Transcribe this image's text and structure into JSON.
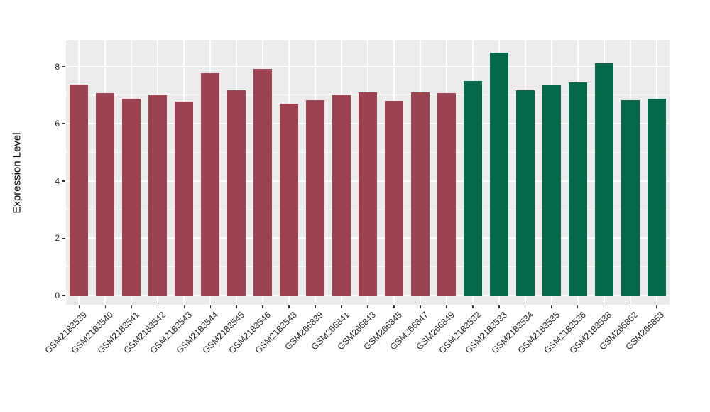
{
  "chart_data": {
    "type": "bar",
    "title": "",
    "xlabel": "",
    "ylabel": "Expression Level",
    "ylim": [
      0,
      8.9
    ],
    "y_ticks": [
      0,
      2,
      4,
      6,
      8
    ],
    "y_minor_ticks": [
      1,
      3,
      5,
      7
    ],
    "grid": true,
    "legend_position": "none",
    "panel_background": "#EBEBEB",
    "categories": [
      "GSM2183539",
      "GSM2183540",
      "GSM2183541",
      "GSM2183542",
      "GSM2183543",
      "GSM2183544",
      "GSM2183545",
      "GSM2183546",
      "GSM2183548",
      "GSM266839",
      "GSM266841",
      "GSM266843",
      "GSM266845",
      "GSM266847",
      "GSM266849",
      "GSM2183532",
      "GSM2183533",
      "GSM2183534",
      "GSM2183535",
      "GSM2183536",
      "GSM2183538",
      "GSM266852",
      "GSM266853"
    ],
    "values": [
      7.38,
      7.08,
      6.87,
      7.0,
      6.77,
      7.77,
      7.17,
      7.92,
      6.7,
      6.82,
      7.0,
      7.1,
      6.79,
      7.09,
      7.06,
      7.5,
      8.49,
      7.18,
      7.34,
      7.45,
      8.11,
      6.82,
      6.87
    ],
    "bar_groups": [
      "group1",
      "group1",
      "group1",
      "group1",
      "group1",
      "group1",
      "group1",
      "group1",
      "group1",
      "group1",
      "group1",
      "group1",
      "group1",
      "group1",
      "group1",
      "group2",
      "group2",
      "group2",
      "group2",
      "group2",
      "group2",
      "group2",
      "group2"
    ],
    "group_colors": {
      "group1": "#9C4351",
      "group2": "#05684B"
    }
  }
}
